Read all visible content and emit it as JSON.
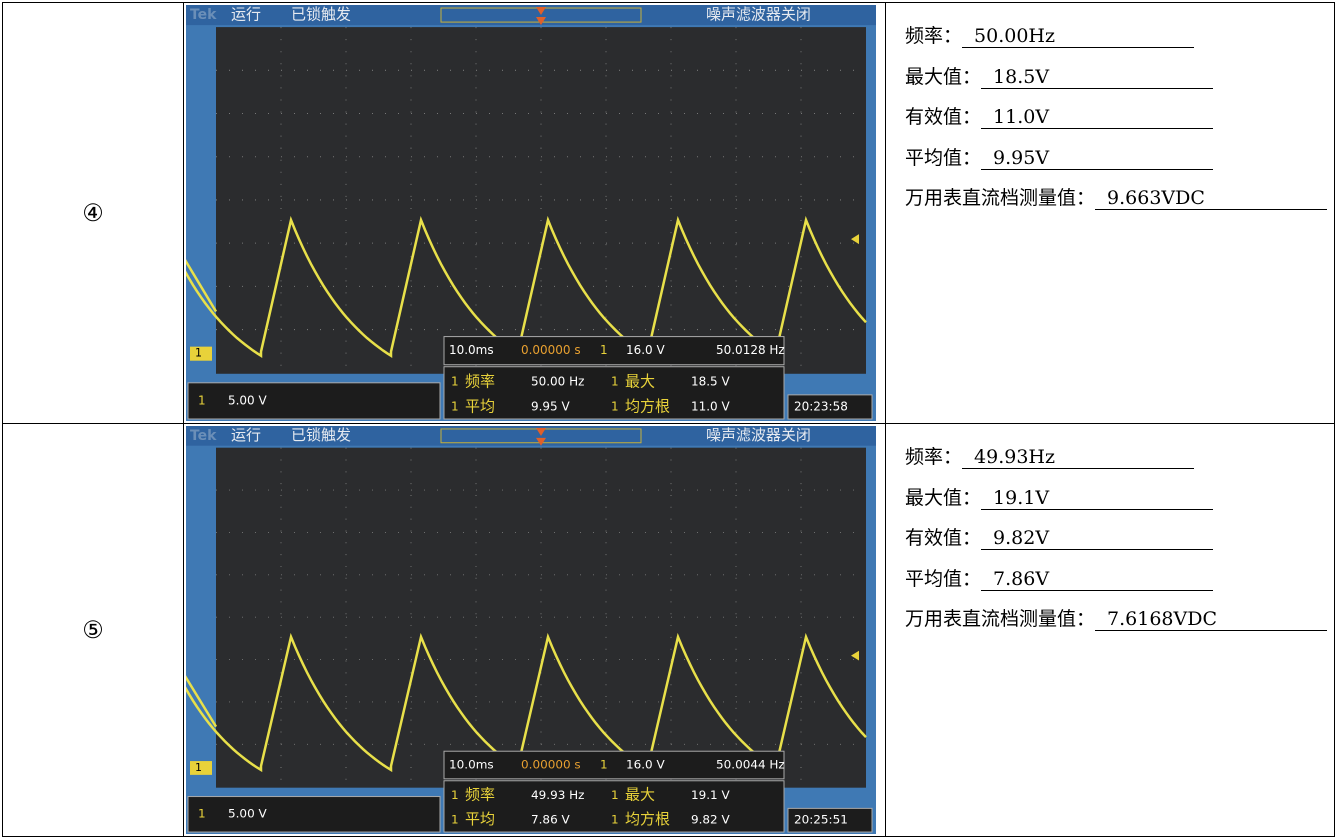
{
  "rows": [
    {
      "label": "④",
      "screen": {
        "logo": "Tek",
        "status": "运行",
        "trigger_state": "已锁触发",
        "filter": "噪声滤波器关闭",
        "channel": "1",
        "timebase": "10.0ms",
        "delay": "0.00000 s",
        "trigger_level": "16.0 V",
        "trigger_freq": "50.0128 Hz",
        "channel_scale": "5.00 V",
        "clock": "20:23:58",
        "readouts": [
          {
            "name": "频率",
            "value": "50.00 Hz"
          },
          {
            "name": "最大",
            "value": "18.5 V"
          },
          {
            "name": "平均",
            "value": "9.95 V"
          },
          {
            "name": "均方根",
            "value": "11.0 V"
          }
        ]
      },
      "measurements": [
        {
          "label": "频率：",
          "value": "50.00Hz"
        },
        {
          "label": "最大值：",
          "value": "18.5V"
        },
        {
          "label": "有效值：",
          "value": "11.0V"
        },
        {
          "label": "平均值：",
          "value": "9.95V"
        },
        {
          "label": "万用表直流档测量值：",
          "value": "9.663VDC"
        }
      ]
    },
    {
      "label": "⑤",
      "screen": {
        "logo": "Tek",
        "status": "运行",
        "trigger_state": "已锁触发",
        "filter": "噪声滤波器关闭",
        "channel": "1",
        "timebase": "10.0ms",
        "delay": "0.00000 s",
        "trigger_level": "16.0 V",
        "trigger_freq": "50.0044 Hz",
        "channel_scale": "5.00 V",
        "clock": "20:25:51",
        "readouts": [
          {
            "name": "频率",
            "value": "49.93 Hz"
          },
          {
            "name": "最大",
            "value": "19.1 V"
          },
          {
            "name": "平均",
            "value": "7.86 V"
          },
          {
            "name": "均方根",
            "value": "9.82 V"
          }
        ]
      },
      "measurements": [
        {
          "label": "频率：",
          "value": "49.93Hz"
        },
        {
          "label": "最大值：",
          "value": "19.1V"
        },
        {
          "label": "有效值：",
          "value": "9.82V"
        },
        {
          "label": "平均值：",
          "value": "7.86V"
        },
        {
          "label": "万用表直流档测量值：",
          "value": "7.6168VDC"
        }
      ]
    }
  ]
}
